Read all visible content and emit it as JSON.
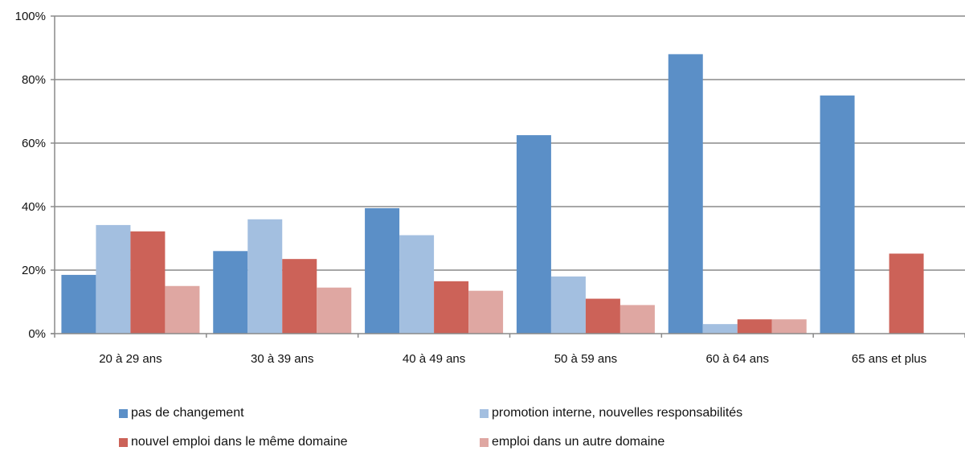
{
  "chart_data": {
    "type": "bar",
    "categories": [
      "20 à 29 ans",
      "30 à 39 ans",
      "40 à 49 ans",
      "50 à 59 ans",
      "60 à 64 ans",
      "65 ans et plus"
    ],
    "series": [
      {
        "name": "pas de changement",
        "color": "#5B8FC7",
        "values": [
          18.5,
          26,
          39.5,
          62.5,
          88,
          75
        ]
      },
      {
        "name": "promotion interne, nouvelles responsabilités",
        "color": "#A3BFE0",
        "values": [
          34.2,
          36,
          31,
          18,
          3,
          0
        ]
      },
      {
        "name": "nouvel emploi dans le même domaine",
        "color": "#CC6258",
        "values": [
          32.2,
          23.5,
          16.5,
          11,
          4.5,
          25.2
        ]
      },
      {
        "name": "emploi dans un autre domaine",
        "color": "#DFA7A2",
        "values": [
          15,
          14.5,
          13.5,
          9,
          4.5,
          0
        ]
      }
    ],
    "ylim": [
      0,
      100
    ],
    "yticks": [
      "0%",
      "20%",
      "40%",
      "60%",
      "80%",
      "100%"
    ],
    "grid": true,
    "legend_position": "bottom",
    "title": "",
    "xlabel": "",
    "ylabel": ""
  }
}
